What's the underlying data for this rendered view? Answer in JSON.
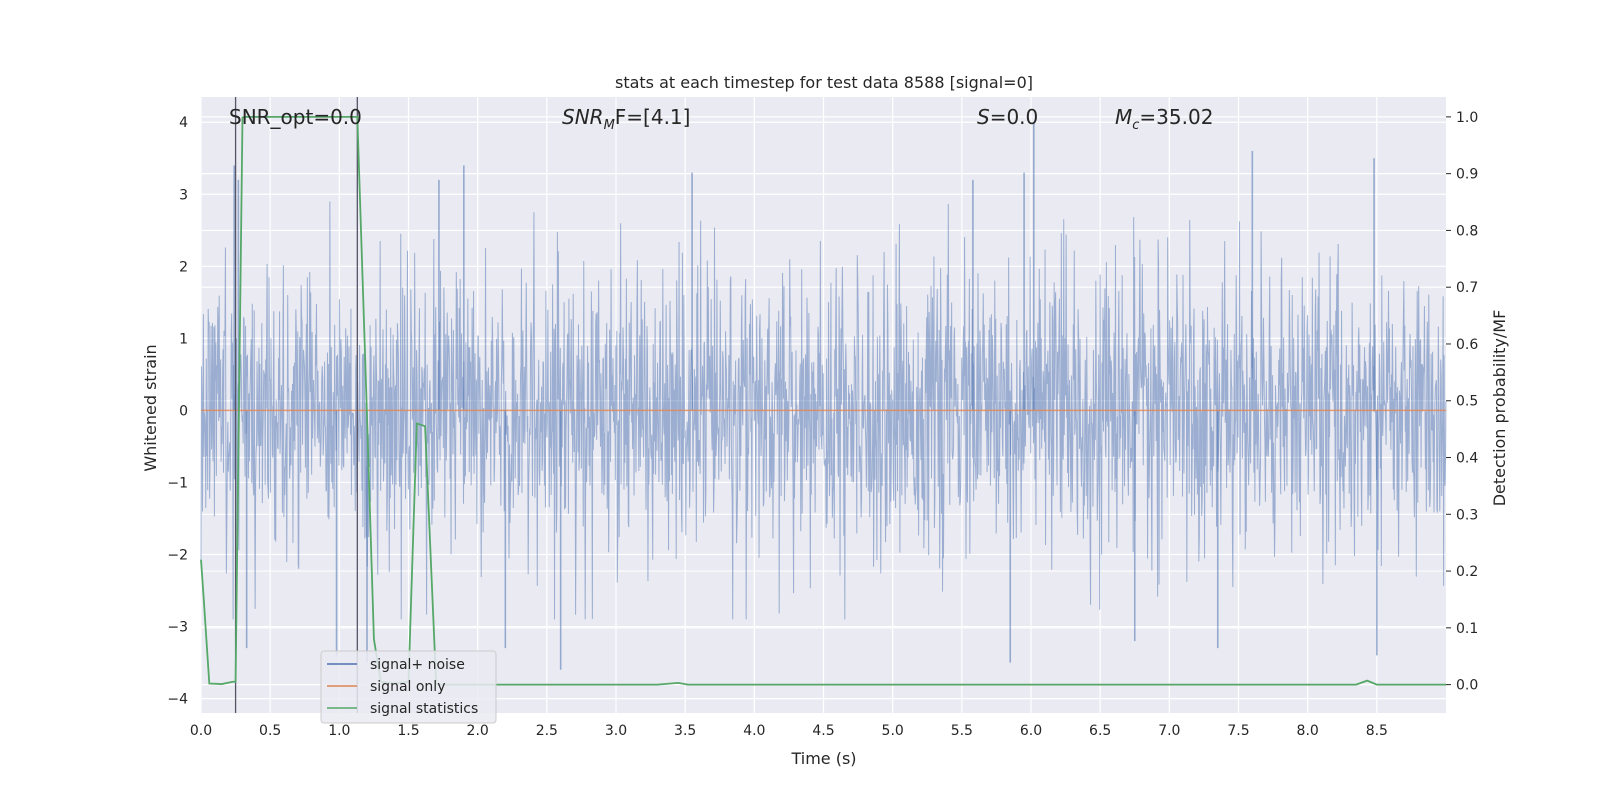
{
  "chart_data": {
    "type": "line",
    "title": "stats at each timestep for test data 8588 [signal=0]",
    "xlabel": "Time (s)",
    "ylabel_left": "Whitened strain",
    "ylabel_right": "Detection probability/MF",
    "xlim": [
      0.0,
      9.0
    ],
    "ylim_left": [
      -4.2,
      4.35
    ],
    "ylim_right": [
      -0.05,
      1.035
    ],
    "xticks": [
      "0.0",
      "0.5",
      "1.0",
      "1.5",
      "2.0",
      "2.5",
      "3.0",
      "3.5",
      "4.0",
      "4.5",
      "5.0",
      "5.5",
      "6.0",
      "6.5",
      "7.0",
      "7.5",
      "8.0",
      "8.5"
    ],
    "yticks_left": [
      "4",
      "3",
      "2",
      "1",
      "0",
      "−1",
      "−2",
      "−3",
      "−4"
    ],
    "yticks_right": [
      "1.0",
      "0.9",
      "0.8",
      "0.7",
      "0.6",
      "0.5",
      "0.4",
      "0.3",
      "0.2",
      "0.1",
      "0.0"
    ],
    "annotations": {
      "snr_opt": "SNR_opt=0.0",
      "snr_mf_main": "SNR",
      "snr_mf_sub": "M",
      "snr_mf_rest": "F=[4.1]",
      "s_main": "S",
      "s_rest": "=0.0",
      "mc_main": "M",
      "mc_sub": "c",
      "mc_rest": "=35.02"
    },
    "vlines_x": [
      0.25,
      1.13
    ],
    "grid": true,
    "legend_position": "lower-left",
    "series": [
      {
        "name": "signal+ noise",
        "axis": "left",
        "color": "#4c72b0",
        "description_points": "dense noise between about -2.5 and 2.5 with spikes to about ±3.9",
        "peaks_up": [
          [
            0.24,
            3.4
          ],
          [
            0.27,
            3.2
          ],
          [
            1.72,
            3.2
          ],
          [
            1.9,
            3.4
          ],
          [
            3.55,
            3.3
          ],
          [
            5.58,
            3.2
          ],
          [
            5.95,
            3.3
          ],
          [
            6.02,
            4.0
          ],
          [
            7.6,
            3.6
          ],
          [
            8.48,
            3.5
          ]
        ],
        "peaks_down": [
          [
            0.33,
            -3.3
          ],
          [
            0.98,
            -3.4
          ],
          [
            1.2,
            -3.5
          ],
          [
            2.2,
            -3.3
          ],
          [
            2.6,
            -3.6
          ],
          [
            5.85,
            -3.5
          ],
          [
            6.75,
            -3.2
          ],
          [
            7.35,
            -3.3
          ],
          [
            8.5,
            -3.4
          ]
        ]
      },
      {
        "name": "signal only",
        "axis": "left",
        "color": "#dd8452",
        "x": [
          0.0,
          9.0
        ],
        "y": [
          0.0,
          0.0
        ]
      },
      {
        "name": "signal statistics",
        "axis": "right",
        "color": "#55a868",
        "x": [
          0.0,
          0.02,
          0.06,
          0.15,
          0.23,
          0.25,
          0.3,
          0.33,
          0.55,
          0.75,
          1.0,
          1.13,
          1.19,
          1.25,
          1.3,
          1.4,
          1.5,
          1.56,
          1.62,
          1.7,
          1.8,
          2.0,
          3.3,
          3.45,
          3.52,
          4.0,
          5.0,
          6.0,
          7.0,
          8.0,
          8.35,
          8.43,
          8.5,
          9.0
        ],
        "y": [
          0.22,
          0.15,
          0.002,
          0.001,
          0.005,
          0.005,
          0.999,
          1.0,
          1.0,
          1.0,
          1.0,
          1.0,
          0.55,
          0.08,
          0.005,
          0.002,
          0.005,
          0.46,
          0.455,
          0.0,
          0.0,
          0.0,
          0.0,
          0.003,
          0.0,
          0.0,
          0.0,
          0.0,
          0.0,
          0.0,
          0.0,
          0.007,
          0.0,
          0.0
        ]
      }
    ]
  }
}
